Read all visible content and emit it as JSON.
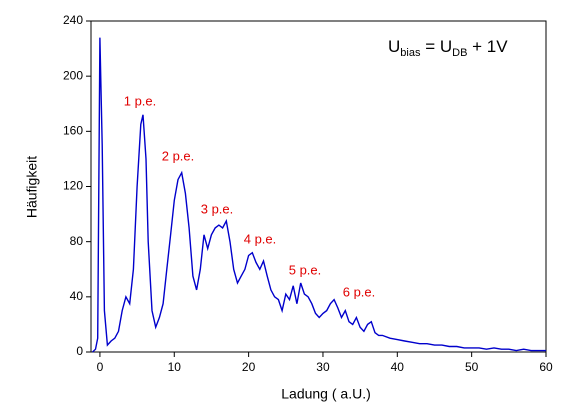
{
  "chart_data": {
    "type": "line",
    "x_label": "Ladung ( a.U.)",
    "y_label": "Häufigkeit",
    "formula": [
      "U",
      "bias",
      " = U",
      "DB",
      " + 1V"
    ],
    "annotations": [
      "1 p.e.",
      "2 p.e.",
      "3 p.e.",
      "4 p.e.",
      "5 p.e.",
      "6 p.e."
    ],
    "annotation_color": "#e00000",
    "color": "#0000cc",
    "x": [
      -1,
      -0.6,
      -0.3,
      0,
      0.3,
      0.6,
      1,
      1.5,
      2,
      2.5,
      3,
      3.5,
      4,
      4.5,
      5,
      5.5,
      5.8,
      6.2,
      6.5,
      7,
      7.5,
      8,
      8.5,
      9,
      9.5,
      10,
      10.5,
      11,
      11.5,
      12,
      12.5,
      13,
      13.5,
      14,
      14.5,
      15,
      15.5,
      16,
      16.5,
      17,
      17.5,
      18,
      18.5,
      19,
      19.5,
      20,
      20.5,
      21,
      21.5,
      22,
      22.5,
      23,
      23.5,
      24,
      24.5,
      25,
      25.5,
      26,
      26.5,
      27,
      27.5,
      28,
      28.5,
      29,
      29.5,
      30,
      30.5,
      31,
      31.5,
      32,
      32.5,
      33,
      33.5,
      34,
      34.5,
      35,
      35.5,
      36,
      36.5,
      37,
      37.5,
      38,
      39,
      40,
      41,
      42,
      43,
      44,
      45,
      46,
      47,
      48,
      49,
      50,
      51,
      52,
      53,
      54,
      55,
      56,
      57,
      58,
      59,
      60
    ],
    "values": [
      0,
      2,
      10,
      228,
      150,
      30,
      5,
      8,
      10,
      15,
      30,
      40,
      35,
      60,
      120,
      165,
      172,
      140,
      80,
      30,
      18,
      25,
      35,
      60,
      85,
      110,
      125,
      130,
      115,
      90,
      55,
      45,
      60,
      85,
      75,
      85,
      90,
      92,
      90,
      95,
      80,
      60,
      50,
      55,
      60,
      70,
      72,
      65,
      60,
      66,
      55,
      45,
      40,
      38,
      30,
      42,
      38,
      48,
      35,
      50,
      42,
      40,
      35,
      28,
      25,
      28,
      30,
      35,
      38,
      32,
      25,
      30,
      22,
      20,
      25,
      18,
      15,
      20,
      22,
      14,
      12,
      12,
      10,
      9,
      8,
      7,
      6,
      6,
      5,
      5,
      4,
      4,
      3,
      3,
      3,
      2,
      3,
      2,
      2,
      1,
      2,
      1,
      1,
      1
    ],
    "xlim": [
      -1.2,
      60
    ],
    "ylim": [
      0,
      240
    ],
    "xticks": [
      0,
      10,
      20,
      30,
      40,
      50,
      60
    ],
    "yticks": [
      0,
      40,
      80,
      120,
      160,
      200,
      240
    ]
  }
}
